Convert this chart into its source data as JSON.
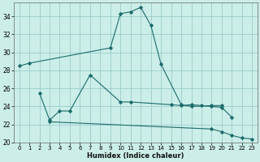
{
  "xlabel": "Humidex (Indice chaleur)",
  "bg_color": "#cceee8",
  "grid_color": "#99cccc",
  "line_color": "#1a6b6b",
  "ylim": [
    20,
    35.5
  ],
  "xlim": [
    -0.5,
    23.5
  ],
  "yticks": [
    20,
    22,
    24,
    26,
    28,
    30,
    32,
    34
  ],
  "xticks": [
    0,
    1,
    2,
    3,
    4,
    5,
    6,
    7,
    8,
    9,
    10,
    11,
    12,
    13,
    14,
    15,
    16,
    17,
    18,
    19,
    20,
    21,
    22,
    23
  ],
  "series1_x": [
    0,
    1,
    9,
    10,
    11,
    12,
    13,
    14,
    16,
    17,
    19,
    20
  ],
  "series1_y": [
    28.5,
    28.8,
    30.5,
    34.3,
    34.5,
    35.0,
    33.0,
    28.7,
    24.2,
    24.0,
    24.1,
    24.1
  ],
  "series2_x": [
    2,
    3,
    4,
    5,
    7,
    10,
    11,
    15,
    16,
    17,
    18,
    19,
    20,
    21
  ],
  "series2_y": [
    25.5,
    22.5,
    23.5,
    23.5,
    27.5,
    24.5,
    24.5,
    24.2,
    24.1,
    24.2,
    24.1,
    24.0,
    23.9,
    22.8
  ],
  "series3_x": [
    3,
    19,
    20,
    21,
    22,
    23
  ],
  "series3_y": [
    22.3,
    21.5,
    21.2,
    20.8,
    20.5,
    20.4
  ]
}
